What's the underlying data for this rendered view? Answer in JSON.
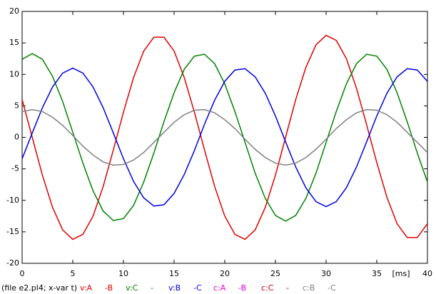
{
  "chart_data": {
    "type": "line",
    "source_label": "(file e2.pl4; x-var t)",
    "xlabel": "[ms]",
    "x": [
      0,
      1,
      2,
      3,
      4,
      5,
      6,
      7,
      8,
      9,
      10,
      11,
      12,
      13,
      14,
      15,
      16,
      17,
      18,
      19,
      20,
      21,
      22,
      23,
      24,
      25,
      26,
      27,
      28,
      29,
      30,
      31,
      32,
      33,
      34,
      35,
      36,
      37,
      38,
      39,
      40
    ],
    "xlim": [
      0,
      40
    ],
    "xticks": [
      0,
      5,
      10,
      15,
      20,
      25,
      30,
      35,
      40
    ],
    "ylim": [
      -20,
      20
    ],
    "yticks": [
      -20,
      -15,
      -10,
      -5,
      0,
      5,
      10,
      15,
      20
    ],
    "grid": false,
    "series": [
      {
        "name": "v:A",
        "to": "-B",
        "color": "#e00000",
        "values": [
          6.0,
          0.0,
          -6.0,
          -11.1,
          -14.7,
          -16.2,
          -15.4,
          -12.5,
          -7.8,
          -2.0,
          4.0,
          9.5,
          13.7,
          15.9,
          15.9,
          13.7,
          9.5,
          4.0,
          -2.0,
          -7.8,
          -12.5,
          -15.4,
          -16.2,
          -14.7,
          -11.1,
          -6.0,
          0.0,
          6.0,
          11.1,
          14.7,
          16.2,
          15.4,
          12.5,
          7.8,
          2.0,
          -4.0,
          -9.5,
          -13.7,
          -15.9,
          -15.9,
          -13.7
        ]
      },
      {
        "name": "v:C",
        "to": "-",
        "color": "#008000",
        "values": [
          12.4,
          13.3,
          12.4,
          9.7,
          5.7,
          0.8,
          -4.1,
          -8.5,
          -11.7,
          -13.2,
          -12.9,
          -10.8,
          -7.1,
          -2.5,
          2.5,
          7.1,
          10.8,
          12.9,
          13.2,
          11.7,
          8.5,
          4.1,
          -0.8,
          -5.7,
          -9.7,
          -12.4,
          -13.3,
          -12.4,
          -9.7,
          -5.7,
          -0.8,
          4.1,
          8.5,
          11.7,
          13.2,
          12.9,
          10.8,
          7.1,
          2.5,
          -2.5,
          -7.1
        ]
      },
      {
        "name": "v:B",
        "to": "-C",
        "color": "#0000e0",
        "values": [
          -3.4,
          0.7,
          4.7,
          8.0,
          10.2,
          11.0,
          10.2,
          8.0,
          4.7,
          0.7,
          -3.4,
          -7.0,
          -9.6,
          -10.9,
          -10.7,
          -8.9,
          -5.9,
          -2.1,
          2.1,
          5.9,
          8.9,
          10.7,
          10.9,
          9.6,
          7.0,
          3.4,
          -0.7,
          -4.7,
          -8.0,
          -10.2,
          -11.0,
          -10.2,
          -8.0,
          -4.7,
          -0.7,
          3.4,
          7.0,
          9.6,
          10.9,
          10.7,
          8.9
        ]
      },
      {
        "name": "c:A",
        "to": "-B",
        "color": "#e000e0",
        "values": [
          null,
          null,
          null,
          null,
          null,
          null,
          null,
          null,
          null,
          null,
          null,
          null,
          null,
          null,
          null,
          null,
          null,
          null,
          null,
          null,
          null,
          null,
          null,
          null,
          null,
          null,
          null,
          null,
          null,
          null,
          null,
          null,
          null,
          null,
          null,
          null,
          null,
          null,
          null,
          null,
          null
        ]
      },
      {
        "name": "c:C",
        "to": "-",
        "color": "#c00000",
        "values": [
          null,
          null,
          null,
          null,
          null,
          null,
          null,
          null,
          null,
          null,
          null,
          null,
          null,
          null,
          null,
          null,
          null,
          null,
          null,
          null,
          null,
          null,
          null,
          null,
          null,
          null,
          null,
          null,
          null,
          null,
          null,
          null,
          null,
          null,
          null,
          null,
          null,
          null,
          null,
          null,
          null
        ]
      },
      {
        "name": "c:B",
        "to": "-C",
        "color": "#808080",
        "values": [
          4.1,
          4.4,
          4.1,
          3.2,
          1.9,
          0.3,
          -1.4,
          -2.8,
          -3.9,
          -4.4,
          -4.3,
          -3.6,
          -2.4,
          -0.8,
          0.8,
          2.4,
          3.6,
          4.3,
          4.4,
          3.9,
          2.8,
          1.4,
          -0.3,
          -1.9,
          -3.2,
          -4.1,
          -4.4,
          -4.1,
          -3.2,
          -1.9,
          -0.3,
          1.4,
          2.8,
          3.9,
          4.4,
          4.3,
          3.6,
          2.4,
          0.8,
          -0.8,
          -2.4
        ]
      }
    ]
  }
}
